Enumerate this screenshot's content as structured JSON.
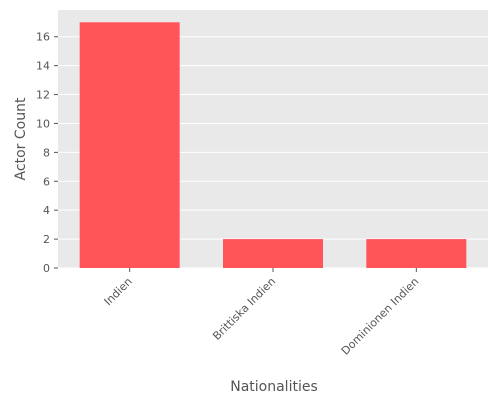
{
  "chart_data": {
    "type": "bar",
    "title": "",
    "xlabel": "Nationalities",
    "ylabel": "Actor Count",
    "categories": [
      "Indien",
      "Brittiska Indien",
      "Dominionen Indien"
    ],
    "values": [
      17,
      2,
      2
    ],
    "ylim": [
      0,
      17.85
    ],
    "yticks": [
      0,
      2,
      4,
      6,
      8,
      10,
      12,
      14,
      16
    ],
    "grid": true,
    "legend": "none",
    "colors": {
      "bar": "#ff5559",
      "panel_background": "#e9e9e9",
      "grid": "#ffffff",
      "text": "#555555"
    }
  }
}
